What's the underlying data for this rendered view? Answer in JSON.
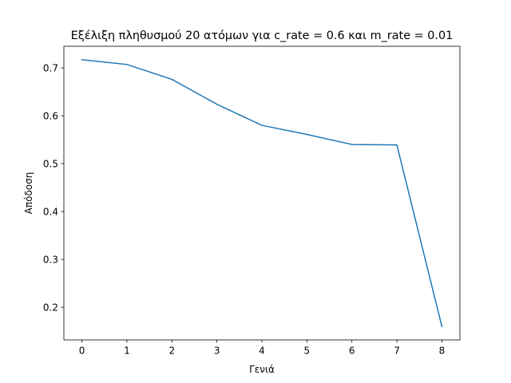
{
  "chart_data": {
    "type": "line",
    "title": "Εξέλιξη πληθυσμού 20 ατόμων για c_rate = 0.6 και m_rate = 0.01",
    "xlabel": "Γενιά",
    "ylabel": "Απόδοση",
    "x": [
      0,
      1,
      2,
      3,
      4,
      5,
      6,
      7,
      8
    ],
    "series": [
      {
        "values": [
          0.717,
          0.707,
          0.676,
          0.624,
          0.58,
          0.561,
          0.54,
          0.539,
          0.16
        ],
        "color": "#1f77b4"
      }
    ],
    "xlim": [
      -0.4,
      8.4
    ],
    "ylim": [
      0.132,
      0.745
    ],
    "xticks": [
      0,
      1,
      2,
      3,
      4,
      5,
      6,
      7,
      8
    ],
    "xtick_labels": [
      "0",
      "1",
      "2",
      "3",
      "4",
      "5",
      "6",
      "7",
      "8"
    ],
    "yticks": [
      0.2,
      0.3,
      0.4,
      0.5,
      0.6,
      0.7
    ],
    "ytick_labels": [
      "0.2",
      "0.3",
      "0.4",
      "0.5",
      "0.6",
      "0.7"
    ],
    "grid": false,
    "legend": "none"
  }
}
